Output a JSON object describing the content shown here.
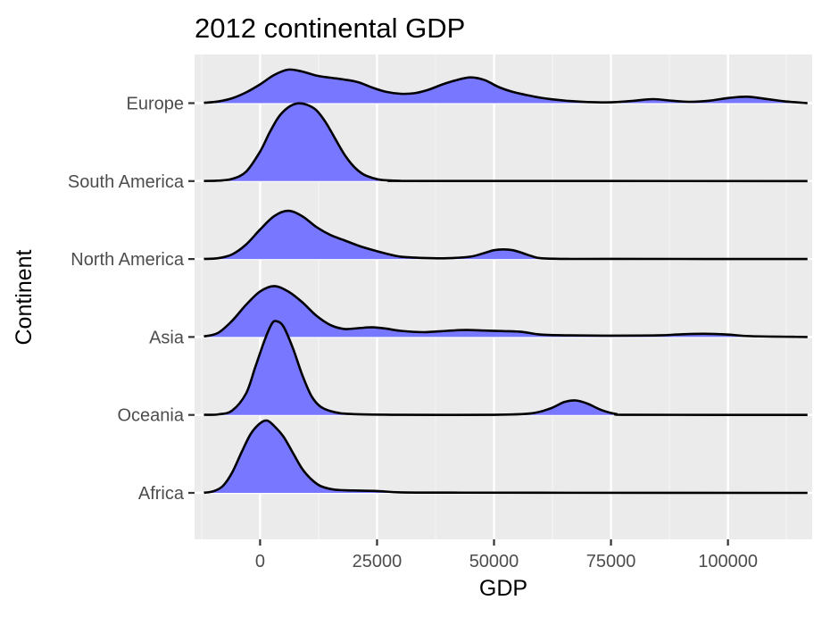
{
  "chart_data": {
    "type": "ridgeline",
    "title": "2012 continental GDP",
    "xlabel": "GDP",
    "ylabel": "Continent",
    "xlim": [
      -14000,
      118000
    ],
    "x_ticks": [
      0,
      25000,
      50000,
      75000,
      100000
    ],
    "x_tick_labels": [
      "0",
      "25000",
      "50000",
      "75000",
      "100000"
    ],
    "x_minor_ticks": [
      -12500,
      12500,
      37500,
      62500,
      87500,
      112500
    ],
    "categories": [
      "Africa",
      "Oceania",
      "Asia",
      "North America",
      "South America",
      "Europe"
    ],
    "grid": true,
    "fill_color": "#7777ff",
    "line_color": "#000000",
    "panel_color": "#ebebeb",
    "series": [
      {
        "name": "Africa",
        "x": [
          -12000,
          -10000,
          -8000,
          -6000,
          -4000,
          -2000,
          0,
          1500,
          3000,
          5000,
          7000,
          9000,
          11000,
          13000,
          16000,
          20000,
          25000,
          30000,
          40000,
          60000,
          117000
        ],
        "density": [
          0.05,
          0.6,
          2.5,
          7.5,
          15,
          22,
          26,
          27,
          25,
          21,
          15,
          9,
          5,
          2.5,
          1.2,
          0.9,
          0.7,
          0.2,
          0.1,
          0.05,
          0
        ]
      },
      {
        "name": "Oceania",
        "x": [
          -12000,
          -9000,
          -6000,
          -3000,
          -1000,
          1000,
          2500,
          3500,
          5000,
          7000,
          9000,
          11000,
          13000,
          16000,
          20000,
          30000,
          50000,
          58000,
          62000,
          65000,
          67500,
          70000,
          73000,
          76000,
          80000,
          117000
        ],
        "density": [
          0.05,
          0.2,
          1.6,
          8,
          18,
          28,
          34,
          35,
          33,
          25,
          15,
          7,
          3,
          1,
          0.3,
          0.05,
          0.05,
          0.6,
          2.4,
          4.8,
          5.4,
          4.2,
          1.8,
          0.4,
          0.05,
          0
        ]
      },
      {
        "name": "Asia",
        "x": [
          -12000,
          -9000,
          -6000,
          -3000,
          0,
          3000,
          6000,
          9000,
          12000,
          15000,
          18000,
          21000,
          24000,
          27000,
          30000,
          35000,
          40000,
          44000,
          48000,
          52000,
          56000,
          60000,
          66000,
          75000,
          85000,
          90000,
          95000,
          100000,
          105000,
          117000
        ],
        "density": [
          0.2,
          1.5,
          6,
          12,
          17,
          19,
          17,
          13,
          8,
          4.5,
          3,
          3.3,
          3.6,
          3.1,
          2.3,
          1.8,
          2.3,
          2.6,
          2.4,
          2.2,
          1.9,
          0.9,
          0.6,
          0.5,
          0.6,
          1,
          1.2,
          0.9,
          0.3,
          0
        ]
      },
      {
        "name": "North America",
        "x": [
          -12000,
          -9000,
          -6000,
          -3000,
          0,
          3000,
          6000,
          9000,
          12000,
          15000,
          18000,
          21000,
          24000,
          27000,
          30000,
          35000,
          40000,
          45000,
          48000,
          50000,
          52000,
          54000,
          56000,
          58000,
          60000,
          65000,
          75000,
          117000
        ],
        "density": [
          0.05,
          0.3,
          1.7,
          5.4,
          11,
          16,
          18,
          16,
          12,
          9,
          7,
          5,
          3.4,
          2,
          0.9,
          0.4,
          0.3,
          0.9,
          2.3,
          3.3,
          3.6,
          3.3,
          2.3,
          1.1,
          0.3,
          0.05,
          0.05,
          0
        ]
      },
      {
        "name": "South America",
        "x": [
          -12000,
          -9000,
          -6000,
          -3000,
          0,
          2000,
          4000,
          6000,
          8000,
          10000,
          12000,
          14000,
          16000,
          18000,
          20000,
          22000,
          24000,
          26000,
          30000,
          35000,
          117000
        ],
        "density": [
          0.05,
          0.15,
          0.8,
          3.5,
          11,
          18,
          24,
          27.5,
          29,
          28.5,
          26.5,
          22,
          16,
          10,
          5.5,
          2.6,
          1.2,
          0.4,
          0.1,
          0.05,
          0
        ]
      },
      {
        "name": "Europe",
        "x": [
          -12000,
          -9000,
          -6000,
          -3000,
          0,
          3000,
          6000,
          9000,
          12000,
          15000,
          18000,
          21000,
          24000,
          27000,
          30000,
          33000,
          36000,
          39000,
          42000,
          45000,
          48000,
          51000,
          54000,
          57000,
          60000,
          63000,
          66000,
          70000,
          75000,
          80000,
          84000,
          88000,
          92000,
          96000,
          100000,
          104000,
          108000,
          112000,
          117000
        ],
        "density": [
          0.1,
          0.6,
          1.8,
          4,
          7,
          10.5,
          12.5,
          11.8,
          10.3,
          9.5,
          8.8,
          7.8,
          5.8,
          4.2,
          3.5,
          3.7,
          5,
          7,
          8.6,
          9.6,
          8.6,
          6,
          4.2,
          3,
          2,
          1.3,
          0.8,
          0.4,
          0.3,
          0.9,
          1.5,
          0.9,
          0.5,
          0.9,
          1.9,
          2.4,
          1.6,
          0.7,
          0
        ]
      }
    ]
  }
}
